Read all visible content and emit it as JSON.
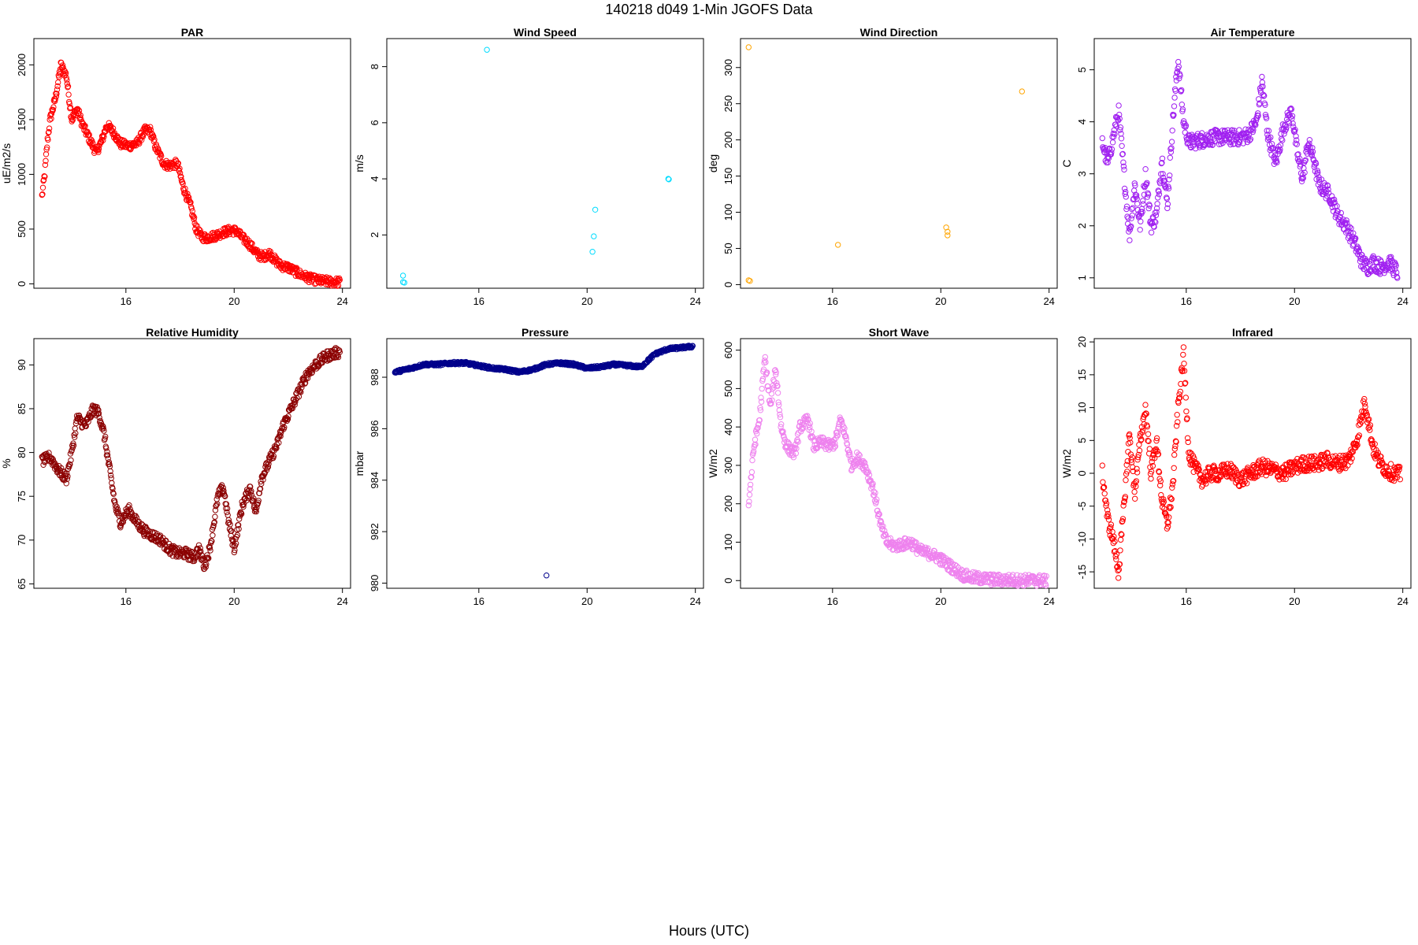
{
  "figure": {
    "title": "140218   d049   1-Min  JGOFS Data",
    "xlabel": "Hours (UTC)"
  },
  "chart_data": [
    {
      "type": "scatter",
      "title": "PAR",
      "ylabel": "uE/m2/s",
      "color": "#ff0000",
      "xlim": [
        12.6,
        24.3
      ],
      "ylim": [
        -40,
        2240
      ],
      "xticks": [
        16,
        20,
        24
      ],
      "yticks": [
        0,
        500,
        1000,
        1500,
        2000
      ],
      "curve": [
        [
          12.9,
          800
        ],
        [
          13.0,
          1000
        ],
        [
          13.1,
          1300
        ],
        [
          13.2,
          1500
        ],
        [
          13.4,
          1700
        ],
        [
          13.6,
          2000
        ],
        [
          13.8,
          1900
        ],
        [
          14.0,
          1500
        ],
        [
          14.2,
          1600
        ],
        [
          14.4,
          1450
        ],
        [
          14.6,
          1350
        ],
        [
          14.9,
          1200
        ],
        [
          15.1,
          1300
        ],
        [
          15.3,
          1450
        ],
        [
          15.5,
          1400
        ],
        [
          15.8,
          1280
        ],
        [
          16.1,
          1260
        ],
        [
          16.4,
          1280
        ],
        [
          16.7,
          1400
        ],
        [
          16.9,
          1400
        ],
        [
          17.1,
          1250
        ],
        [
          17.4,
          1100
        ],
        [
          17.6,
          1080
        ],
        [
          17.9,
          1100
        ],
        [
          18.1,
          900
        ],
        [
          18.4,
          700
        ],
        [
          18.6,
          500
        ],
        [
          18.8,
          430
        ],
        [
          19.0,
          420
        ],
        [
          19.3,
          440
        ],
        [
          19.6,
          470
        ],
        [
          19.9,
          490
        ],
        [
          20.1,
          480
        ],
        [
          20.3,
          420
        ],
        [
          20.5,
          380
        ],
        [
          20.7,
          320
        ],
        [
          20.9,
          260
        ],
        [
          21.1,
          250
        ],
        [
          21.3,
          280
        ],
        [
          21.5,
          220
        ],
        [
          21.7,
          170
        ],
        [
          22.0,
          150
        ],
        [
          22.2,
          120
        ],
        [
          22.5,
          80
        ],
        [
          22.8,
          50
        ],
        [
          23.1,
          30
        ],
        [
          23.5,
          20
        ],
        [
          23.9,
          15
        ]
      ],
      "spread": 40
    },
    {
      "type": "scatter",
      "title": "Wind Speed",
      "ylabel": "m/s",
      "color": "#00dcff",
      "xlim": [
        12.6,
        24.3
      ],
      "ylim": [
        0.1,
        9.0
      ],
      "xticks": [
        16,
        20,
        24
      ],
      "yticks": [
        2,
        4,
        6,
        8
      ],
      "points": [
        [
          13.2,
          0.55
        ],
        [
          13.2,
          0.32
        ],
        [
          13.25,
          0.3
        ],
        [
          16.3,
          8.6
        ],
        [
          20.2,
          1.4
        ],
        [
          20.25,
          1.95
        ],
        [
          20.3,
          2.9
        ],
        [
          23.0,
          4.0
        ],
        [
          23.02,
          3.98
        ]
      ]
    },
    {
      "type": "scatter",
      "title": "Wind Direction",
      "ylabel": "deg",
      "color": "#ffa500",
      "xlim": [
        12.6,
        24.3
      ],
      "ylim": [
        -5,
        340
      ],
      "xticks": [
        16,
        20,
        24
      ],
      "yticks": [
        0,
        50,
        100,
        150,
        200,
        250,
        300
      ],
      "points": [
        [
          12.9,
          328
        ],
        [
          12.9,
          6
        ],
        [
          12.95,
          5
        ],
        [
          16.2,
          55
        ],
        [
          20.2,
          79
        ],
        [
          20.25,
          73
        ],
        [
          20.25,
          68
        ],
        [
          23.0,
          267
        ]
      ]
    },
    {
      "type": "scatter",
      "title": "Air Temperature",
      "ylabel": "C",
      "color": "#a020f0",
      "xlim": [
        12.6,
        24.3
      ],
      "ylim": [
        0.8,
        5.6
      ],
      "xticks": [
        16,
        20,
        24
      ],
      "yticks": [
        1,
        2,
        3,
        4,
        5
      ],
      "curve": [
        [
          12.9,
          3.6
        ],
        [
          13.1,
          3.2
        ],
        [
          13.3,
          3.7
        ],
        [
          13.5,
          4.2
        ],
        [
          13.7,
          3.0
        ],
        [
          13.9,
          1.8
        ],
        [
          14.1,
          2.8
        ],
        [
          14.3,
          2.0
        ],
        [
          14.5,
          3.0
        ],
        [
          14.7,
          2.0
        ],
        [
          14.9,
          2.2
        ],
        [
          15.1,
          3.3
        ],
        [
          15.3,
          2.4
        ],
        [
          15.5,
          4.0
        ],
        [
          15.7,
          5.2
        ],
        [
          15.9,
          4.0
        ],
        [
          16.1,
          3.6
        ],
        [
          16.5,
          3.65
        ],
        [
          17.0,
          3.7
        ],
        [
          17.5,
          3.7
        ],
        [
          18.0,
          3.7
        ],
        [
          18.3,
          3.75
        ],
        [
          18.6,
          4.0
        ],
        [
          18.8,
          4.8
        ],
        [
          19.0,
          3.8
        ],
        [
          19.3,
          3.2
        ],
        [
          19.6,
          3.9
        ],
        [
          19.9,
          4.2
        ],
        [
          20.1,
          3.4
        ],
        [
          20.3,
          2.9
        ],
        [
          20.5,
          3.6
        ],
        [
          20.7,
          3.3
        ],
        [
          20.9,
          2.8
        ],
        [
          21.3,
          2.6
        ],
        [
          21.6,
          2.2
        ],
        [
          21.9,
          2.0
        ],
        [
          22.2,
          1.7
        ],
        [
          22.5,
          1.3
        ],
        [
          22.7,
          1.2
        ],
        [
          22.9,
          1.3
        ],
        [
          23.2,
          1.2
        ],
        [
          23.5,
          1.3
        ],
        [
          23.8,
          1.1
        ]
      ],
      "spread": 0.15
    },
    {
      "type": "scatter",
      "title": "Relative Humidity",
      "ylabel": "%",
      "color": "#8b0000",
      "xlim": [
        12.6,
        24.3
      ],
      "ylim": [
        64.5,
        93.0
      ],
      "xticks": [
        16,
        20,
        24
      ],
      "yticks": [
        65,
        70,
        75,
        80,
        85,
        90
      ],
      "curve": [
        [
          12.9,
          79
        ],
        [
          13.2,
          79.5
        ],
        [
          13.5,
          78
        ],
        [
          13.8,
          77
        ],
        [
          14.0,
          80
        ],
        [
          14.2,
          84
        ],
        [
          14.5,
          83
        ],
        [
          14.8,
          85
        ],
        [
          15.0,
          84.5
        ],
        [
          15.2,
          82
        ],
        [
          15.4,
          78
        ],
        [
          15.6,
          74
        ],
        [
          15.8,
          72
        ],
        [
          16.1,
          73.5
        ],
        [
          16.4,
          72
        ],
        [
          16.7,
          71
        ],
        [
          17.0,
          70.5
        ],
        [
          17.3,
          70
        ],
        [
          17.6,
          69
        ],
        [
          17.9,
          68.5
        ],
        [
          18.2,
          68.5
        ],
        [
          18.5,
          68
        ],
        [
          18.7,
          69
        ],
        [
          18.9,
          67
        ],
        [
          19.1,
          69
        ],
        [
          19.4,
          75
        ],
        [
          19.6,
          76
        ],
        [
          19.8,
          72
        ],
        [
          20.0,
          69
        ],
        [
          20.3,
          74
        ],
        [
          20.6,
          76
        ],
        [
          20.8,
          73
        ],
        [
          21.0,
          77
        ],
        [
          21.3,
          79
        ],
        [
          21.6,
          81
        ],
        [
          21.8,
          83
        ],
        [
          22.1,
          85
        ],
        [
          22.4,
          87
        ],
        [
          22.7,
          89
        ],
        [
          23.0,
          90
        ],
        [
          23.4,
          91
        ],
        [
          23.9,
          91.5
        ]
      ],
      "spread": 0.6
    },
    {
      "type": "scatter",
      "title": "Pressure",
      "ylabel": "mbar",
      "color": "#00008b",
      "xlim": [
        12.6,
        24.3
      ],
      "ylim": [
        979.8,
        989.5
      ],
      "xticks": [
        16,
        20,
        24
      ],
      "yticks": [
        980,
        982,
        984,
        986,
        988
      ],
      "curve": [
        [
          12.9,
          988.2
        ],
        [
          13.5,
          988.35
        ],
        [
          14.0,
          988.5
        ],
        [
          14.5,
          988.5
        ],
        [
          15.0,
          988.55
        ],
        [
          15.5,
          988.55
        ],
        [
          16.0,
          988.45
        ],
        [
          16.5,
          988.35
        ],
        [
          17.0,
          988.3
        ],
        [
          17.5,
          988.2
        ],
        [
          18.0,
          988.3
        ],
        [
          18.5,
          988.5
        ],
        [
          19.0,
          988.55
        ],
        [
          19.5,
          988.5
        ],
        [
          20.0,
          988.35
        ],
        [
          20.5,
          988.4
        ],
        [
          21.0,
          988.5
        ],
        [
          21.5,
          988.45
        ],
        [
          22.0,
          988.4
        ],
        [
          22.5,
          988.9
        ],
        [
          23.0,
          989.1
        ],
        [
          23.5,
          989.15
        ],
        [
          23.9,
          989.2
        ]
      ],
      "spread": 0.05,
      "points": [
        [
          18.5,
          980.3
        ]
      ]
    },
    {
      "type": "scatter",
      "title": "Short Wave",
      "ylabel": "W/m2",
      "color": "#ee82ee",
      "xlim": [
        12.6,
        24.3
      ],
      "ylim": [
        -20,
        630
      ],
      "xticks": [
        16,
        20,
        24
      ],
      "yticks": [
        0,
        100,
        200,
        300,
        400,
        500,
        600
      ],
      "curve": [
        [
          12.9,
          200
        ],
        [
          13.1,
          350
        ],
        [
          13.3,
          420
        ],
        [
          13.5,
          580
        ],
        [
          13.7,
          450
        ],
        [
          13.9,
          550
        ],
        [
          14.1,
          400
        ],
        [
          14.3,
          350
        ],
        [
          14.6,
          330
        ],
        [
          14.8,
          400
        ],
        [
          15.1,
          420
        ],
        [
          15.3,
          350
        ],
        [
          15.6,
          360
        ],
        [
          15.9,
          350
        ],
        [
          16.1,
          360
        ],
        [
          16.3,
          420
        ],
        [
          16.5,
          370
        ],
        [
          16.7,
          300
        ],
        [
          16.9,
          320
        ],
        [
          17.2,
          300
        ],
        [
          17.5,
          240
        ],
        [
          17.8,
          140
        ],
        [
          18.0,
          100
        ],
        [
          18.3,
          90
        ],
        [
          18.6,
          95
        ],
        [
          18.9,
          100
        ],
        [
          19.1,
          85
        ],
        [
          19.3,
          75
        ],
        [
          19.6,
          70
        ],
        [
          19.9,
          60
        ],
        [
          20.2,
          45
        ],
        [
          20.5,
          30
        ],
        [
          20.8,
          15
        ],
        [
          21.1,
          8
        ],
        [
          21.5,
          5
        ],
        [
          22.0,
          2
        ],
        [
          23.0,
          1
        ],
        [
          23.9,
          0
        ]
      ],
      "spread": 15
    },
    {
      "type": "scatter",
      "title": "Infrared",
      "ylabel": "W/m2",
      "color": "#ff0000",
      "xlim": [
        12.6,
        24.3
      ],
      "ylim": [
        -17.5,
        20.5
      ],
      "xticks": [
        16,
        20,
        24
      ],
      "yticks": [
        -15,
        -10,
        -5,
        0,
        5,
        10,
        15,
        20
      ],
      "curve": [
        [
          12.9,
          0
        ],
        [
          13.1,
          -7
        ],
        [
          13.3,
          -10
        ],
        [
          13.5,
          -15
        ],
        [
          13.7,
          -5
        ],
        [
          13.9,
          6
        ],
        [
          14.1,
          -3
        ],
        [
          14.3,
          5
        ],
        [
          14.5,
          10
        ],
        [
          14.7,
          0
        ],
        [
          14.9,
          5
        ],
        [
          15.1,
          -4
        ],
        [
          15.3,
          -8
        ],
        [
          15.5,
          -2
        ],
        [
          15.7,
          10
        ],
        [
          15.9,
          18
        ],
        [
          16.1,
          3
        ],
        [
          16.3,
          1
        ],
        [
          16.6,
          -1
        ],
        [
          16.9,
          0
        ],
        [
          17.2,
          0
        ],
        [
          17.6,
          0.5
        ],
        [
          18.0,
          -1
        ],
        [
          18.4,
          0
        ],
        [
          18.8,
          1
        ],
        [
          19.2,
          0.5
        ],
        [
          19.6,
          0
        ],
        [
          20.0,
          1
        ],
        [
          20.4,
          1.5
        ],
        [
          20.8,
          1.5
        ],
        [
          21.2,
          2
        ],
        [
          21.6,
          1.5
        ],
        [
          22.0,
          2
        ],
        [
          22.3,
          5
        ],
        [
          22.6,
          11
        ],
        [
          22.9,
          4
        ],
        [
          23.1,
          2
        ],
        [
          23.4,
          0.5
        ],
        [
          23.7,
          0
        ],
        [
          23.9,
          -0.2
        ]
      ],
      "spread": 1.2
    }
  ]
}
